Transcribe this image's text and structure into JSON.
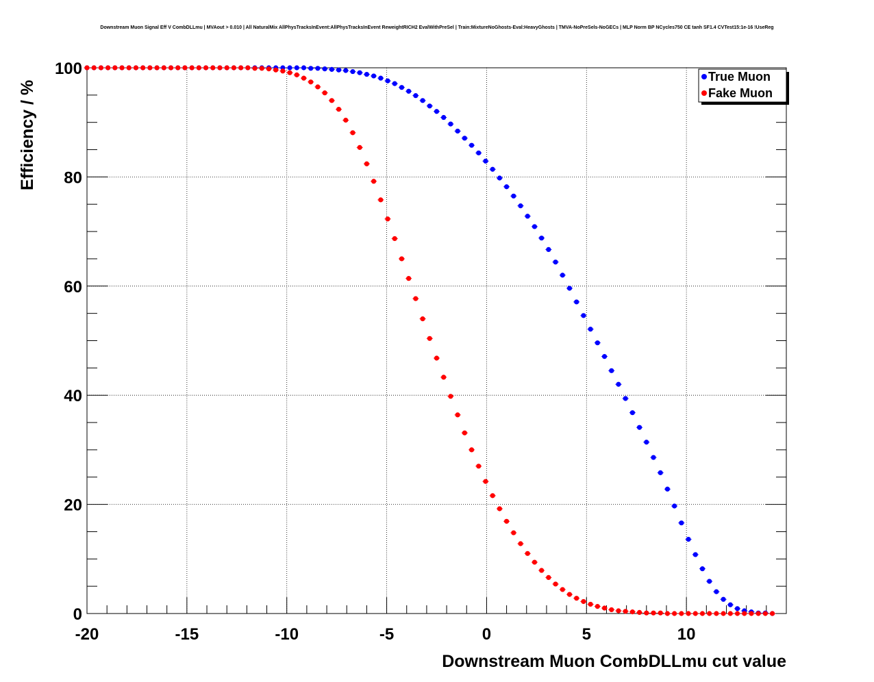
{
  "chart_data": {
    "type": "scatter",
    "title": "Downstream Muon Signal Eff V CombDLLmu | MVAout > 0.010 | All NaturalMix AllPhysTracksInEvent:AllPhysTracksInEvent ReweightRICH2 EvalWithPreSel | Train:MixtureNoGhosts-Eval:HeavyGhosts | TMVA-NoPreSels-NoGECs | MLP Norm BP NCycles750 CE tanh SF1.4 CVTest15:1e-16 !UseReg",
    "xlabel": "Downstream Muon CombDLLmu cut value",
    "ylabel": "Efficiency / %",
    "xlim": [
      -20,
      15
    ],
    "ylim": [
      0,
      100
    ],
    "x_ticks": [
      -20,
      -15,
      -10,
      -5,
      0,
      5,
      10
    ],
    "y_ticks": [
      0,
      20,
      40,
      60,
      80,
      100
    ],
    "grid": true,
    "legend_position": "top-right",
    "series": [
      {
        "name": "True Muon",
        "color": "#0000ff",
        "x": [
          -20,
          -19.65,
          -19.3,
          -18.95,
          -18.6,
          -18.25,
          -17.9,
          -17.55,
          -17.2,
          -16.85,
          -16.5,
          -16.15,
          -15.8,
          -15.45,
          -15.1,
          -14.75,
          -14.4,
          -14.05,
          -13.7,
          -13.35,
          -13,
          -12.65,
          -12.3,
          -11.95,
          -11.6,
          -11.25,
          -10.9,
          -10.55,
          -10.2,
          -9.85,
          -9.5,
          -9.15,
          -8.8,
          -8.45,
          -8.1,
          -7.75,
          -7.4,
          -7.05,
          -6.7,
          -6.35,
          -6,
          -5.65,
          -5.3,
          -4.95,
          -4.6,
          -4.25,
          -3.9,
          -3.55,
          -3.2,
          -2.85,
          -2.5,
          -2.15,
          -1.8,
          -1.45,
          -1.1,
          -0.75,
          -0.4,
          -0.05,
          0.3,
          0.65,
          1,
          1.35,
          1.7,
          2.05,
          2.4,
          2.75,
          3.1,
          3.45,
          3.8,
          4.15,
          4.5,
          4.85,
          5.2,
          5.55,
          5.9,
          6.25,
          6.6,
          6.95,
          7.3,
          7.65,
          8,
          8.35,
          8.7,
          9.05,
          9.4,
          9.75,
          10.1,
          10.45,
          10.8,
          11.15,
          11.5,
          11.85,
          12.2,
          12.55,
          12.9,
          13.25,
          13.6,
          13.95,
          14.3
        ],
        "y": [
          100,
          100,
          100,
          100,
          100,
          100,
          100,
          100,
          100,
          100,
          100,
          100,
          100,
          100,
          100,
          100,
          100,
          100,
          100,
          100,
          100,
          100,
          100,
          100,
          100,
          100,
          100,
          100,
          100,
          100,
          100,
          100,
          99.9,
          99.9,
          99.8,
          99.7,
          99.6,
          99.5,
          99.3,
          99.1,
          98.8,
          98.5,
          98.1,
          97.6,
          97.1,
          96.4,
          95.7,
          94.9,
          94,
          93,
          92,
          90.9,
          89.7,
          88.4,
          87.1,
          85.8,
          84.4,
          82.9,
          81.4,
          79.8,
          78.2,
          76.5,
          74.7,
          72.8,
          70.9,
          68.8,
          66.7,
          64.4,
          62,
          59.6,
          57.1,
          54.6,
          52.1,
          49.6,
          47.1,
          44.5,
          42,
          39.4,
          36.8,
          34.1,
          31.4,
          28.6,
          25.8,
          22.8,
          19.7,
          16.6,
          13.6,
          10.8,
          8.2,
          5.9,
          4,
          2.6,
          1.6,
          0.9,
          0.5,
          0.3,
          0.1,
          0.1,
          0
        ]
      },
      {
        "name": "Fake Muon",
        "color": "#ff0000",
        "x": [
          -20,
          -19.65,
          -19.3,
          -18.95,
          -18.6,
          -18.25,
          -17.9,
          -17.55,
          -17.2,
          -16.85,
          -16.5,
          -16.15,
          -15.8,
          -15.45,
          -15.1,
          -14.75,
          -14.4,
          -14.05,
          -13.7,
          -13.35,
          -13,
          -12.65,
          -12.3,
          -11.95,
          -11.6,
          -11.25,
          -10.9,
          -10.55,
          -10.2,
          -9.85,
          -9.5,
          -9.15,
          -8.8,
          -8.45,
          -8.1,
          -7.75,
          -7.4,
          -7.05,
          -6.7,
          -6.35,
          -6,
          -5.65,
          -5.3,
          -4.95,
          -4.6,
          -4.25,
          -3.9,
          -3.55,
          -3.2,
          -2.85,
          -2.5,
          -2.15,
          -1.8,
          -1.45,
          -1.1,
          -0.75,
          -0.4,
          -0.05,
          0.3,
          0.65,
          1,
          1.35,
          1.7,
          2.05,
          2.4,
          2.75,
          3.1,
          3.45,
          3.8,
          4.15,
          4.5,
          4.85,
          5.2,
          5.55,
          5.9,
          6.25,
          6.6,
          6.95,
          7.3,
          7.65,
          8,
          8.35,
          8.7,
          9.05,
          9.4,
          9.75,
          10.1,
          10.45,
          10.8,
          11.15,
          11.5,
          11.85,
          12.2,
          12.55,
          12.9,
          13.25,
          13.6,
          13.95,
          14.3
        ],
        "y": [
          100,
          100,
          100,
          100,
          100,
          100,
          100,
          100,
          100,
          100,
          100,
          100,
          100,
          100,
          100,
          100,
          100,
          100,
          100,
          100,
          100,
          100,
          100,
          100,
          99.9,
          99.9,
          99.8,
          99.6,
          99.4,
          99.1,
          98.7,
          98.1,
          97.4,
          96.5,
          95.4,
          94,
          92.4,
          90.4,
          88.1,
          85.4,
          82.4,
          79.2,
          75.8,
          72.3,
          68.7,
          65,
          61.4,
          57.7,
          54,
          50.4,
          46.8,
          43.3,
          39.8,
          36.4,
          33.1,
          30,
          27,
          24.2,
          21.6,
          19.2,
          16.9,
          14.8,
          12.8,
          11,
          9.4,
          7.9,
          6.6,
          5.4,
          4.4,
          3.5,
          2.8,
          2.2,
          1.7,
          1.3,
          1,
          0.7,
          0.5,
          0.4,
          0.3,
          0.2,
          0.1,
          0.1,
          0.1,
          0,
          0,
          0,
          0,
          0,
          0,
          0,
          0,
          0,
          0,
          0,
          0,
          0,
          0,
          0,
          0
        ]
      }
    ]
  }
}
